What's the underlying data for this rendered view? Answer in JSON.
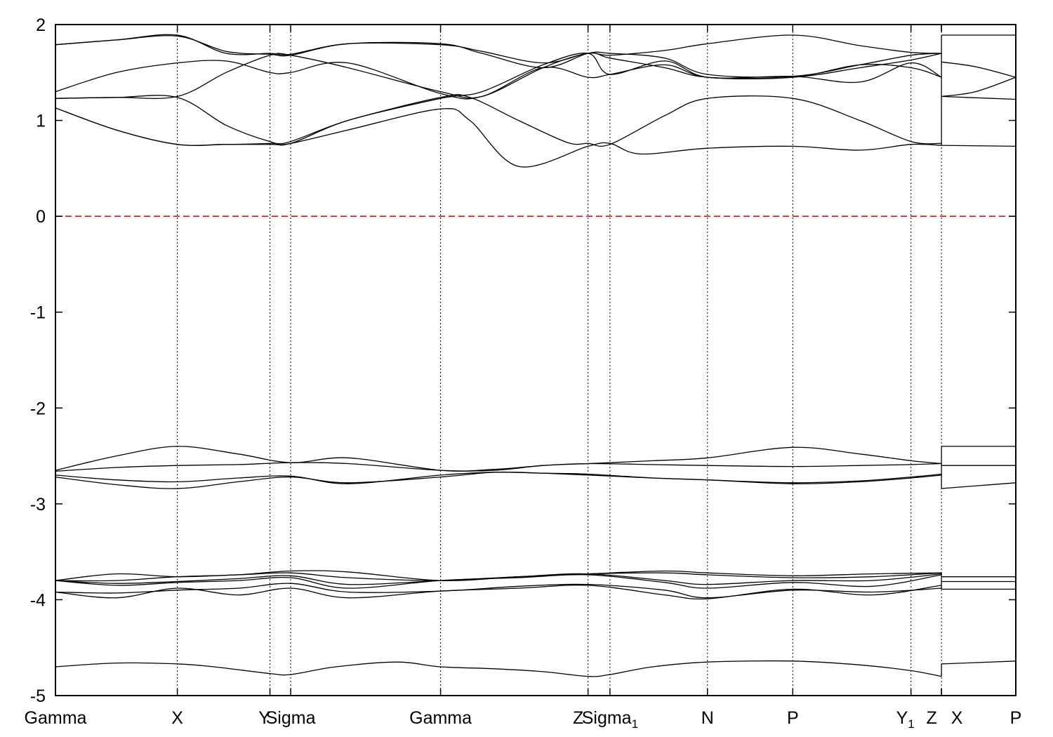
{
  "chart_data": {
    "type": "line",
    "title": "",
    "xlabel": "",
    "ylabel": "",
    "ylim": [
      -5,
      2
    ],
    "y_ticks": [
      -5,
      -4,
      -3,
      -2,
      -1,
      0,
      1,
      2
    ],
    "y_tick_labels": [
      "-5",
      "-4",
      "-3",
      "-2",
      "-1",
      "0",
      "1",
      "2"
    ],
    "x_kpoints": [
      {
        "x": 0.0,
        "label": "Gamma",
        "sub": ""
      },
      {
        "x": 1.0,
        "label": "X",
        "sub": ""
      },
      {
        "x": 1.76,
        "label": "Y",
        "sub": ""
      },
      {
        "x": 1.93,
        "label": "Sigma",
        "sub": ""
      },
      {
        "x": 3.16,
        "label": "Gamma",
        "sub": ""
      },
      {
        "x": 4.37,
        "label": "Z",
        "sub": ""
      },
      {
        "x": 4.55,
        "label": "Sigma",
        "sub": "1"
      },
      {
        "x": 5.35,
        "label": "N",
        "sub": ""
      },
      {
        "x": 6.05,
        "label": "P",
        "sub": ""
      },
      {
        "x": 7.02,
        "label": "Y",
        "sub": "1"
      },
      {
        "x": 7.27,
        "label": "Z",
        "sub": ""
      },
      {
        "x": 7.27,
        "label": "X",
        "sub": ""
      },
      {
        "x": 7.88,
        "label": "P",
        "sub": ""
      }
    ],
    "xlim": [
      0,
      7.88
    ],
    "x_display_offsets": {
      "Y": -8,
      "Sigma": 0,
      "Z": -12,
      "Y1": 0,
      "Z2": -18,
      "X2": 22
    },
    "fermi_level": {
      "y": 0,
      "color": "#dd0000",
      "style": "dashed"
    },
    "line_color": "#000000",
    "series": [
      {
        "x": [
          0,
          0.5,
          1.0,
          1.3,
          1.76,
          1.93,
          2.3,
          2.8,
          3.16,
          3.6,
          4.0,
          4.37,
          4.55,
          4.9,
          5.35,
          6.05,
          6.6,
          7.02,
          7.27
        ],
        "y": [
          -4.7,
          -4.66,
          -4.67,
          -4.7,
          -4.77,
          -4.78,
          -4.7,
          -4.65,
          -4.7,
          -4.72,
          -4.75,
          -4.8,
          -4.78,
          -4.7,
          -4.65,
          -4.64,
          -4.68,
          -4.74,
          -4.8
        ]
      },
      {
        "x": [
          7.27,
          7.88
        ],
        "y": [
          -4.67,
          -4.64
        ]
      },
      {
        "x": [
          0,
          0.5,
          1.0,
          1.5,
          1.93,
          2.4,
          3.16,
          3.8,
          4.37,
          5.0,
          5.35,
          6.05,
          6.7,
          7.27
        ],
        "y": [
          -3.92,
          -3.98,
          -3.88,
          -3.95,
          -3.88,
          -3.98,
          -3.91,
          -3.88,
          -3.85,
          -3.95,
          -3.99,
          -3.89,
          -3.95,
          -3.85
        ]
      },
      {
        "x": [
          0,
          0.5,
          1.0,
          1.5,
          1.93,
          2.4,
          3.16,
          3.8,
          4.37,
          5.0,
          5.35,
          6.05,
          6.7,
          7.27
        ],
        "y": [
          -3.92,
          -3.93,
          -3.9,
          -3.88,
          -3.83,
          -3.92,
          -3.91,
          -3.86,
          -3.84,
          -3.9,
          -3.98,
          -3.9,
          -3.92,
          -3.88
        ]
      },
      {
        "x": [
          0,
          0.5,
          1.0,
          1.5,
          1.93,
          2.4,
          3.16,
          3.8,
          4.37,
          5.0,
          5.35,
          6.05,
          6.7,
          7.27
        ],
        "y": [
          -3.8,
          -3.85,
          -3.82,
          -3.8,
          -3.77,
          -3.88,
          -3.8,
          -3.77,
          -3.74,
          -3.82,
          -3.88,
          -3.82,
          -3.86,
          -3.74
        ]
      },
      {
        "x": [
          0,
          0.5,
          1.0,
          1.5,
          1.93,
          2.4,
          3.16,
          3.8,
          4.37,
          5.0,
          5.35,
          6.05,
          6.7,
          7.27
        ],
        "y": [
          -3.8,
          -3.83,
          -3.81,
          -3.78,
          -3.75,
          -3.84,
          -3.8,
          -3.76,
          -3.73,
          -3.8,
          -3.84,
          -3.8,
          -3.8,
          -3.73
        ]
      },
      {
        "x": [
          0,
          0.5,
          1.0,
          1.5,
          1.93,
          2.4,
          3.16,
          3.8,
          4.37,
          5.0,
          5.35,
          6.05,
          6.7,
          7.27
        ],
        "y": [
          -3.8,
          -3.73,
          -3.76,
          -3.74,
          -3.72,
          -3.77,
          -3.8,
          -3.76,
          -3.73,
          -3.72,
          -3.74,
          -3.77,
          -3.76,
          -3.72
        ]
      },
      {
        "x": [
          0,
          0.5,
          1.0,
          1.5,
          1.93,
          2.4,
          3.16,
          3.8,
          4.37,
          5.0,
          5.35,
          6.05,
          6.7,
          7.27
        ],
        "y": [
          -3.8,
          -3.8,
          -3.76,
          -3.74,
          -3.7,
          -3.71,
          -3.8,
          -3.76,
          -3.73,
          -3.7,
          -3.72,
          -3.75,
          -3.73,
          -3.72
        ]
      },
      {
        "x": [
          7.27,
          7.88
        ],
        "y": [
          -3.76,
          -3.76
        ]
      },
      {
        "x": [
          7.27,
          7.88
        ],
        "y": [
          -3.81,
          -3.81
        ]
      },
      {
        "x": [
          7.27,
          7.88
        ],
        "y": [
          -3.89,
          -3.89
        ]
      },
      {
        "x": [
          0,
          0.5,
          1.0,
          1.5,
          1.93,
          2.4,
          3.16,
          3.6,
          4.0,
          4.37,
          4.9,
          5.35,
          6.05,
          6.6,
          7.02,
          7.27
        ],
        "y": [
          -2.72,
          -2.8,
          -2.84,
          -2.77,
          -2.72,
          -2.78,
          -2.72,
          -2.67,
          -2.68,
          -2.7,
          -2.73,
          -2.75,
          -2.79,
          -2.77,
          -2.73,
          -2.7
        ]
      },
      {
        "x": [
          0,
          0.5,
          1.0,
          1.5,
          1.93,
          2.4,
          3.16,
          3.6,
          4.0,
          4.37,
          4.9,
          5.35,
          6.05,
          6.6,
          7.02,
          7.27
        ],
        "y": [
          -2.7,
          -2.75,
          -2.77,
          -2.73,
          -2.71,
          -2.79,
          -2.7,
          -2.67,
          -2.68,
          -2.69,
          -2.73,
          -2.75,
          -2.78,
          -2.76,
          -2.72,
          -2.69
        ]
      },
      {
        "x": [
          0,
          0.5,
          1.0,
          1.5,
          1.93,
          2.4,
          3.16,
          3.6,
          4.0,
          4.37,
          4.9,
          5.35,
          6.05,
          6.6,
          7.02,
          7.27
        ],
        "y": [
          -2.66,
          -2.62,
          -2.6,
          -2.59,
          -2.57,
          -2.58,
          -2.65,
          -2.65,
          -2.6,
          -2.58,
          -2.55,
          -2.52,
          -2.41,
          -2.48,
          -2.55,
          -2.58
        ]
      },
      {
        "x": [
          0,
          0.5,
          1.0,
          1.5,
          1.93,
          2.4,
          3.16,
          3.6,
          4.0,
          4.37,
          4.9,
          5.35,
          6.05,
          6.6,
          7.02,
          7.27
        ],
        "y": [
          -2.65,
          -2.5,
          -2.4,
          -2.48,
          -2.57,
          -2.52,
          -2.65,
          -2.64,
          -2.6,
          -2.58,
          -2.59,
          -2.6,
          -2.61,
          -2.6,
          -2.59,
          -2.58
        ]
      },
      {
        "x": [
          7.27,
          7.88
        ],
        "y": [
          -2.4,
          -2.4
        ]
      },
      {
        "x": [
          7.27,
          7.88
        ],
        "y": [
          -2.6,
          -2.6
        ]
      },
      {
        "x": [
          7.27,
          7.88
        ],
        "y": [
          -2.84,
          -2.78
        ]
      },
      {
        "x": [
          0,
          0.5,
          1.0,
          1.4,
          1.76,
          1.93,
          2.4,
          3.16,
          3.4,
          3.8,
          4.37,
          4.55,
          4.8,
          5.35,
          6.05,
          6.6,
          7.02,
          7.27
        ],
        "y": [
          1.13,
          0.9,
          0.75,
          0.75,
          0.75,
          0.76,
          0.9,
          1.12,
          1.0,
          0.52,
          0.73,
          0.76,
          0.65,
          0.71,
          0.73,
          0.69,
          0.75,
          0.74
        ]
      },
      {
        "x": [
          0,
          0.5,
          1.0,
          1.4,
          1.76,
          1.93,
          2.4,
          3.16,
          3.4,
          3.8,
          4.2,
          4.37,
          4.55,
          5.0,
          5.35,
          6.05,
          6.6,
          7.02,
          7.27
        ],
        "y": [
          1.13,
          0.9,
          0.75,
          0.75,
          0.76,
          0.78,
          1.0,
          1.24,
          1.24,
          1.0,
          0.77,
          0.76,
          0.75,
          1.05,
          1.23,
          1.23,
          1.0,
          0.78,
          0.76
        ]
      },
      {
        "x": [
          0,
          0.5,
          1.0,
          1.4,
          1.76,
          1.93,
          2.4,
          3.16,
          3.5,
          4.0,
          4.37,
          4.55,
          5.0,
          5.35,
          6.05,
          6.6,
          7.02,
          7.27
        ],
        "y": [
          1.23,
          1.24,
          1.24,
          0.95,
          0.78,
          0.76,
          1.0,
          1.23,
          1.3,
          1.58,
          1.7,
          1.48,
          1.62,
          1.45,
          1.46,
          1.4,
          1.6,
          1.45
        ]
      },
      {
        "x": [
          0,
          0.5,
          1.0,
          1.4,
          1.76,
          1.93,
          2.4,
          3.16,
          3.5,
          4.0,
          4.37,
          4.55,
          5.0,
          5.35,
          6.05,
          6.6,
          7.02,
          7.27
        ],
        "y": [
          1.23,
          1.24,
          1.25,
          1.5,
          1.68,
          1.68,
          1.55,
          1.3,
          1.25,
          1.55,
          1.7,
          1.65,
          1.55,
          1.45,
          1.45,
          1.55,
          1.63,
          1.7
        ]
      },
      {
        "x": [
          0,
          0.5,
          1.0,
          1.4,
          1.76,
          1.93,
          2.4,
          3.16,
          3.5,
          4.0,
          4.37,
          4.55,
          5.0,
          5.35,
          6.05,
          6.6,
          7.02,
          7.27
        ],
        "y": [
          1.3,
          1.5,
          1.6,
          1.62,
          1.5,
          1.5,
          1.6,
          1.28,
          1.25,
          1.55,
          1.45,
          1.48,
          1.58,
          1.45,
          1.45,
          1.58,
          1.55,
          1.45
        ]
      },
      {
        "x": [
          0,
          0.5,
          1.0,
          1.4,
          1.76,
          1.93,
          2.4,
          3.16,
          3.5,
          4.0,
          4.37,
          4.55,
          5.0,
          5.35,
          6.05,
          6.6,
          7.02,
          7.27
        ],
        "y": [
          1.79,
          1.84,
          1.88,
          1.72,
          1.69,
          1.68,
          1.8,
          1.8,
          1.7,
          1.55,
          1.7,
          1.7,
          1.65,
          1.48,
          1.46,
          1.58,
          1.68,
          1.7
        ]
      },
      {
        "x": [
          0,
          0.5,
          1.0,
          1.4,
          1.76,
          1.93,
          2.4,
          3.16,
          3.5,
          4.0,
          4.37,
          4.55,
          5.0,
          5.35,
          6.05,
          6.6,
          7.02,
          7.27
        ],
        "y": [
          1.79,
          1.84,
          1.89,
          1.7,
          1.7,
          1.69,
          1.8,
          1.79,
          1.72,
          1.6,
          1.7,
          1.68,
          1.73,
          1.8,
          1.89,
          1.78,
          1.71,
          1.7
        ]
      },
      {
        "x": [
          7.27,
          7.88
        ],
        "y": [
          1.89,
          1.89
        ]
      },
      {
        "x": [
          7.27,
          7.55,
          7.88
        ],
        "y": [
          1.61,
          1.56,
          1.45
        ]
      },
      {
        "x": [
          7.27,
          7.55,
          7.88
        ],
        "y": [
          1.25,
          1.3,
          1.45
        ]
      },
      {
        "x": [
          7.27,
          7.88
        ],
        "y": [
          1.25,
          1.22
        ]
      },
      {
        "x": [
          7.27,
          7.88
        ],
        "y": [
          0.74,
          0.73
        ]
      }
    ]
  }
}
